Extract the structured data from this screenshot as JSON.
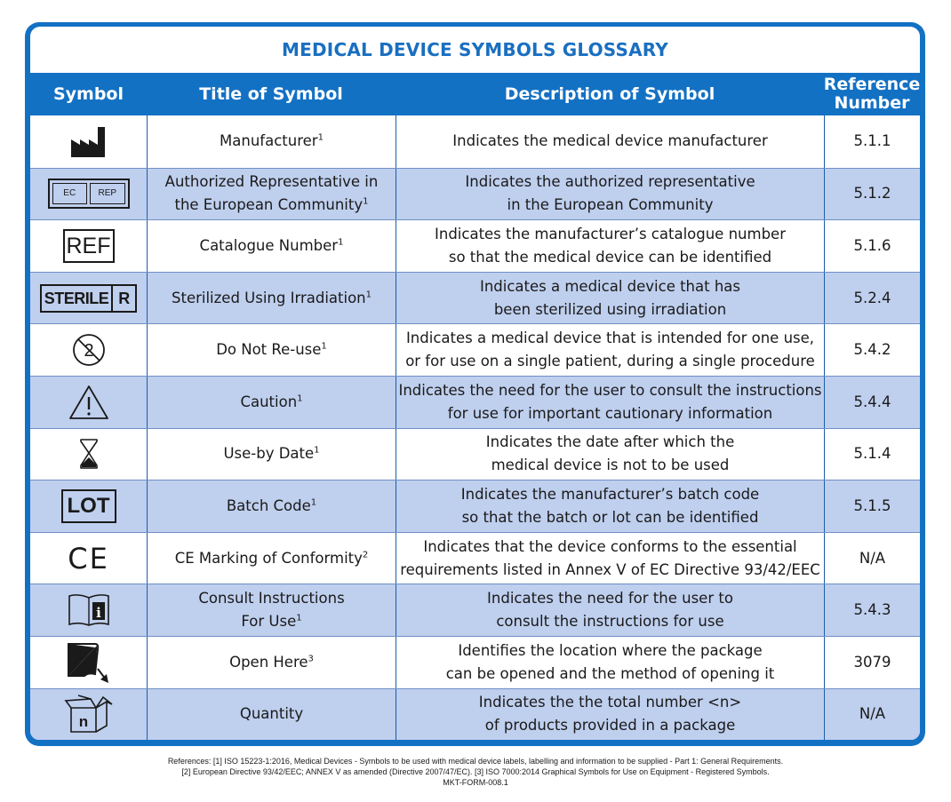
{
  "title": "MEDICAL DEVICE SYMBOLS GLOSSARY",
  "headers": {
    "symbol": "Symbol",
    "title": "Title of Symbol",
    "description": "Description of Symbol",
    "reference": "Reference\nNumber"
  },
  "colors": {
    "frame_blue": "#1371c4",
    "alt_row": "#bfcfee",
    "title_text": "#1a6fc0"
  },
  "rows": [
    {
      "icon": "factory-icon",
      "title": "Manufacturer",
      "sup": "1",
      "description": "Indicates the medical device manufacturer",
      "ref": "5.1.1"
    },
    {
      "icon": "ec-rep-icon",
      "icon_text_a": "EC",
      "icon_text_b": "REP",
      "title": "Authorized Representative in\nthe European Community",
      "sup": "1",
      "description": "Indicates the authorized representative\nin the European Community",
      "ref": "5.1.2"
    },
    {
      "icon": "ref-icon",
      "icon_text": "REF",
      "title": "Catalogue Number",
      "sup": "1",
      "description": "Indicates the manufacturer’s catalogue number\nso that the medical device can be identified",
      "ref": "5.1.6"
    },
    {
      "icon": "sterile-r-icon",
      "icon_text_a": "STERILE",
      "icon_text_b": "R",
      "title": "Sterilized Using Irradiation",
      "sup": "1",
      "description": "Indicates a medical device that has\nbeen sterilized using irradiation",
      "ref": "5.2.4"
    },
    {
      "icon": "do-not-reuse-icon",
      "title": "Do Not Re-use",
      "sup": "1",
      "description": "Indicates a medical device that is intended for one use,\nor for use on a single patient, during a single procedure",
      "ref": "5.4.2"
    },
    {
      "icon": "caution-icon",
      "title": "Caution",
      "sup": "1",
      "description": "Indicates the need for the user to consult the instructions\nfor use for important cautionary information",
      "ref": "5.4.4"
    },
    {
      "icon": "hourglass-icon",
      "title": "Use-by Date",
      "sup": "1",
      "description": "Indicates the date after which the\nmedical device is not to be used",
      "ref": "5.1.4"
    },
    {
      "icon": "lot-icon",
      "icon_text": "LOT",
      "title": "Batch Code",
      "sup": "1",
      "description": "Indicates the manufacturer’s batch code\nso that the batch or lot can be identified",
      "ref": "5.1.5"
    },
    {
      "icon": "ce-mark-icon",
      "icon_text": "CE",
      "title": "CE Marking of Conformity",
      "sup": "2",
      "description": "Indicates that the device conforms to the essential\nrequirements listed in Annex V of EC Directive 93/42/EEC",
      "ref": "N/A"
    },
    {
      "icon": "consult-instructions-icon",
      "title": "Consult Instructions\nFor Use",
      "sup": "1",
      "description": "Indicates the need for the user to\nconsult the instructions for use",
      "ref": "5.4.3"
    },
    {
      "icon": "open-here-icon",
      "title": "Open Here",
      "sup": "3",
      "description": "Identifies the location where the package\ncan be opened and the method of opening it",
      "ref": "3079"
    },
    {
      "icon": "quantity-box-icon",
      "icon_text": "n",
      "title": "Quantity",
      "sup": "",
      "description": "Indicates the the total number <n>\nof products provided in a package",
      "ref": "N/A"
    }
  ],
  "references": [
    "References: [1] ISO 15223-1:2016, Medical Devices - Symbols to be used with medical device labels, labelling and information to be supplied - Part 1: General Requirements.",
    "[2] European Directive 93/42/EEC; ANNEX V as amended (Directive 2007/47/EC). [3] ISO 7000:2014 Graphical Symbols for Use on Equipment - Registered Symbols.",
    "MKT-FORM-008.1"
  ]
}
